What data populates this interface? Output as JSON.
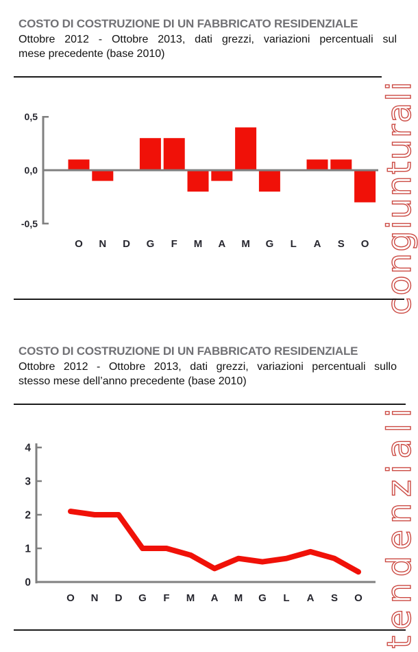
{
  "page_title": "COSTO DI COSTRUZIONE DI UN FABBRICATO RESIDENZIALE",
  "colors": {
    "title_gray": "#717175",
    "body_text": "#121212",
    "axis_gray": "#808080",
    "series_red": "#f01108",
    "side_label_red": "#cb4942",
    "tick_label": "#26262e",
    "separator": "#1a1a1a"
  },
  "chart_data": [
    {
      "type": "bar",
      "title": "COSTO DI COSTRUZIONE DI UN FABBRICATO RESIDENZIALE",
      "subtitle_line1": "Ottobre 2012 - Ottobre 2013, dati grezzi, variazioni percentuali sul",
      "subtitle_line2": "mese precedente (base 2010)",
      "side_label": "congiunturali",
      "categories": [
        "O",
        "N",
        "D",
        "G",
        "F",
        "M",
        "A",
        "M",
        "G",
        "L",
        "A",
        "S",
        "O"
      ],
      "values": [
        0.1,
        -0.1,
        0.0,
        0.3,
        0.3,
        -0.2,
        -0.1,
        0.4,
        -0.2,
        0.0,
        0.1,
        0.1,
        -0.3
      ],
      "ylim": [
        -0.5,
        0.5
      ],
      "y_tick_labels": [
        "0,5",
        "0,0",
        "-0,5"
      ],
      "y_tick_values": [
        0.5,
        0,
        -0.5
      ],
      "grid": "off",
      "legend": "none",
      "bar_color": "#f01108",
      "axis_color": "#808080",
      "label_color": "#26262e",
      "side_label_color": "#cb4942"
    },
    {
      "type": "line",
      "title": "COSTO DI COSTRUZIONE DI UN FABBRICATO RESIDENZIALE",
      "subtitle_line1": "Ottobre 2012 - Ottobre 2013, dati grezzi, variazioni percentuali sullo",
      "subtitle_line2": "stesso mese dell’anno precedente (base 2010)",
      "side_label": "tendenziali",
      "categories": [
        "O",
        "N",
        "D",
        "G",
        "F",
        "M",
        "A",
        "M",
        "G",
        "L",
        "A",
        "S",
        "O"
      ],
      "values": [
        2.1,
        2.0,
        2.0,
        1.0,
        1.0,
        0.8,
        0.4,
        0.7,
        0.6,
        0.7,
        0.9,
        0.7,
        0.3
      ],
      "ylim": [
        0,
        4
      ],
      "y_tick_labels": [
        "4",
        "3",
        "2",
        "1",
        "0"
      ],
      "y_tick_values": [
        4,
        3,
        2,
        1,
        0
      ],
      "grid": "off",
      "legend": "none",
      "line_color": "#f01108",
      "axis_color": "#808080",
      "label_color": "#26262e",
      "side_label_color": "#cb4942"
    }
  ]
}
